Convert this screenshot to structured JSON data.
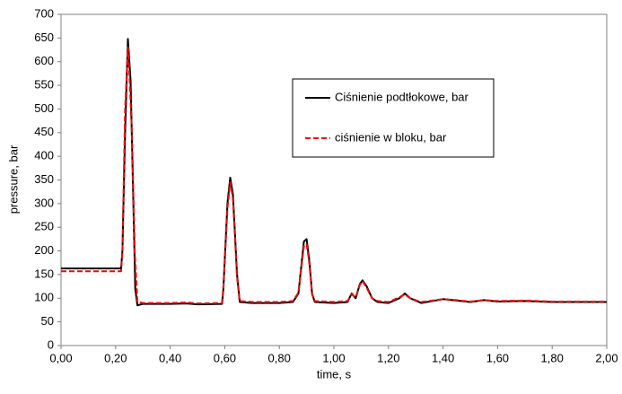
{
  "chart_data": {
    "type": "line",
    "xlabel": "time, s",
    "ylabel": "pressure, bar",
    "xlim": [
      0,
      2
    ],
    "ylim": [
      0,
      700
    ],
    "xticks": [
      {
        "value": 0,
        "label": "0,00"
      },
      {
        "value": 0.2,
        "label": "0,20"
      },
      {
        "value": 0.4,
        "label": "0,40"
      },
      {
        "value": 0.6,
        "label": "0,60"
      },
      {
        "value": 0.8,
        "label": "0,80"
      },
      {
        "value": 1,
        "label": "1,00"
      },
      {
        "value": 1.2,
        "label": "1,20"
      },
      {
        "value": 1.4,
        "label": "1,40"
      },
      {
        "value": 1.6,
        "label": "1,60"
      },
      {
        "value": 1.8,
        "label": "1,80"
      },
      {
        "value": 2,
        "label": "2,00"
      }
    ],
    "yticks": [
      0,
      50,
      100,
      150,
      200,
      250,
      300,
      350,
      400,
      450,
      500,
      550,
      600,
      650,
      700
    ],
    "grid": false,
    "legend": "upper right",
    "series": [
      {
        "name": "Ciśnienie podtłokowe, bar",
        "color": "#000000",
        "dash": false,
        "x": [
          0,
          0.22,
          0.225,
          0.235,
          0.245,
          0.255,
          0.265,
          0.272,
          0.28,
          0.3,
          0.4,
          0.46,
          0.5,
          0.59,
          0.595,
          0.61,
          0.62,
          0.63,
          0.645,
          0.655,
          0.7,
          0.8,
          0.85,
          0.87,
          0.89,
          0.9,
          0.91,
          0.92,
          0.93,
          1.0,
          1.05,
          1.065,
          1.08,
          1.095,
          1.105,
          1.12,
          1.14,
          1.16,
          1.2,
          1.24,
          1.26,
          1.28,
          1.32,
          1.4,
          1.45,
          1.5,
          1.55,
          1.6,
          1.7,
          1.8,
          2.0
        ],
        "values": [
          163,
          163,
          200,
          450,
          648,
          560,
          300,
          120,
          85,
          88,
          88,
          89,
          87,
          88,
          120,
          300,
          355,
          320,
          150,
          92,
          90,
          90,
          92,
          110,
          220,
          225,
          180,
          110,
          92,
          90,
          92,
          110,
          100,
          130,
          138,
          125,
          100,
          92,
          90,
          100,
          110,
          100,
          90,
          98,
          95,
          92,
          96,
          93,
          94,
          92,
          92
        ]
      },
      {
        "name": "ciśnienie w bloku, bar",
        "color": "#ff0000",
        "dash": true,
        "x": [
          0,
          0.22,
          0.225,
          0.235,
          0.245,
          0.25,
          0.26,
          0.27,
          0.28,
          0.3,
          0.4,
          0.46,
          0.5,
          0.59,
          0.595,
          0.61,
          0.62,
          0.63,
          0.645,
          0.655,
          0.7,
          0.8,
          0.85,
          0.87,
          0.89,
          0.9,
          0.91,
          0.92,
          0.93,
          1.0,
          1.05,
          1.065,
          1.08,
          1.095,
          1.105,
          1.12,
          1.14,
          1.16,
          1.2,
          1.24,
          1.26,
          1.28,
          1.32,
          1.4,
          1.45,
          1.5,
          1.55,
          1.6,
          1.7,
          1.8,
          2.0
        ],
        "values": [
          157,
          157,
          200,
          500,
          630,
          580,
          450,
          200,
          92,
          90,
          90,
          91,
          89,
          90,
          125,
          290,
          345,
          310,
          145,
          94,
          92,
          92,
          94,
          112,
          210,
          215,
          175,
          108,
          94,
          92,
          94,
          108,
          102,
          128,
          136,
          122,
          100,
          94,
          92,
          102,
          108,
          100,
          92,
          98,
          96,
          93,
          96,
          94,
          95,
          93,
          93
        ]
      }
    ]
  }
}
